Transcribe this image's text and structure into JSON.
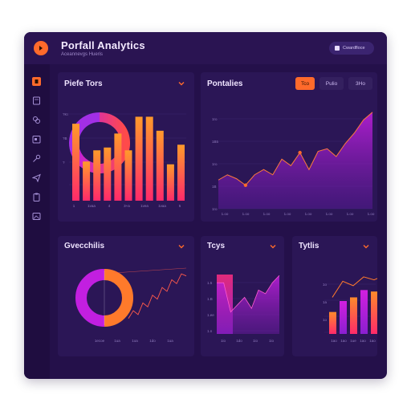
{
  "app": {
    "title": "Porfall Analytics",
    "subtitle": "Aceannevgs Hueris",
    "header_button": "Cwardfloce"
  },
  "colors": {
    "app_bg": "#24104a",
    "panel_bg": "#2b1656",
    "accent_orange": "#ff6a2b",
    "accent_magenta": "#d21fd9",
    "accent_purple": "#9b2fe6"
  },
  "sidebar": {
    "items": [
      {
        "icon": "home-icon",
        "active": true
      },
      {
        "icon": "document-icon"
      },
      {
        "icon": "link-icon"
      },
      {
        "icon": "calendar-icon"
      },
      {
        "icon": "key-icon"
      },
      {
        "icon": "send-icon"
      },
      {
        "icon": "clipboard-icon"
      },
      {
        "icon": "image-icon"
      }
    ]
  },
  "panels": {
    "p1": {
      "title": "Piefe Tors"
    },
    "p2": {
      "title": "Pontalies",
      "segments": [
        "Tco",
        "Pulio",
        "3Ho"
      ],
      "active_segment": 0
    },
    "p3": {
      "title": "Gvecchilis"
    },
    "p4": {
      "title": "Tcys"
    },
    "p5": {
      "title": "Tytlis"
    }
  },
  "chart_data": [
    {
      "panel": "Piefe Tors",
      "type": "bar",
      "values": [
        55,
        28,
        36,
        38,
        48,
        36,
        60,
        60,
        50,
        26,
        40
      ],
      "donut": {
        "type": "pie",
        "slices": [
          {
            "name": "a",
            "value": 0.3
          },
          {
            "name": "b",
            "value": 0.7
          }
        ]
      },
      "ytick_labels": [
        "?KI",
        "?B",
        "?"
      ],
      "xtick_labels": [
        "1",
        "1vaa",
        "4",
        "3+a",
        "1vea",
        "1vaa",
        "5"
      ]
    },
    {
      "panel": "Pontalies",
      "type": "area",
      "values": [
        22,
        26,
        23,
        18,
        26,
        30,
        26,
        38,
        33,
        43,
        30,
        44,
        46,
        40,
        50,
        58,
        68,
        74
      ],
      "ytick_labels": [
        "1ro",
        "1B5",
        "1ro",
        "1B",
        "1ro"
      ],
      "xtick_labels": [
        "1.oo",
        "1.oo",
        "1.oo",
        "1.oo",
        "1.oo",
        "1.oo",
        "1.oo",
        "1.oo"
      ]
    },
    {
      "panel": "Gvecchilis",
      "type": "line",
      "donut": {
        "type": "pie",
        "slices": [
          {
            "name": "orange",
            "value": 0.5
          },
          {
            "name": "magenta",
            "value": 0.5
          }
        ]
      },
      "values": [
        8,
        12,
        10,
        16,
        14,
        20,
        18,
        24,
        22,
        28,
        26,
        31,
        30
      ],
      "xtick_labels": [
        "1ecoe",
        "1ua",
        "1oa",
        "1do",
        "1ua"
      ]
    },
    {
      "panel": "Tcys",
      "type": "area",
      "values": [
        70,
        70,
        30,
        40,
        50,
        35,
        60,
        55,
        70,
        80
      ],
      "ytick_labels": [
        "1.5",
        "1.B",
        "1.ee",
        "1.n"
      ],
      "xtick_labels": [
        "1io",
        "1do",
        "1io",
        "1io"
      ]
    },
    {
      "panel": "Tytlis",
      "type": "bar",
      "values": [
        30,
        45,
        50,
        60,
        58,
        62
      ],
      "line_values": [
        50,
        72,
        66,
        78,
        74,
        80
      ],
      "ytick_labels": [
        "1o",
        "1a",
        "1o"
      ],
      "xtick_labels": [
        "1ao",
        "1ao",
        "1ue",
        "1ao",
        "1ao"
      ]
    }
  ]
}
